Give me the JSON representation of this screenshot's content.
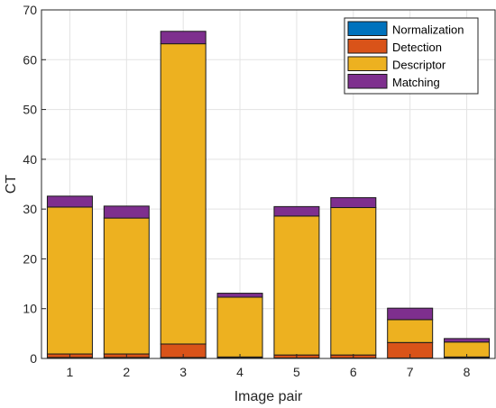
{
  "chart_data": {
    "type": "bar",
    "stacked": true,
    "xlabel": "Image pair",
    "ylabel": "CT",
    "categories": [
      "1",
      "2",
      "3",
      "4",
      "5",
      "6",
      "7",
      "8"
    ],
    "ylim": [
      0,
      70
    ],
    "yticks": [
      0,
      10,
      20,
      30,
      40,
      50,
      60,
      70
    ],
    "grid": true,
    "legend_position": "top-right",
    "series": [
      {
        "name": "Normalization",
        "color": "#0072BD",
        "values": [
          0.2,
          0.2,
          0.2,
          0.1,
          0.1,
          0.1,
          0.1,
          0.1
        ]
      },
      {
        "name": "Detection",
        "color": "#D95319",
        "values": [
          0.7,
          0.7,
          2.7,
          0.2,
          0.6,
          0.6,
          3.1,
          0.2
        ]
      },
      {
        "name": "Descriptor",
        "color": "#EDB120",
        "values": [
          29.5,
          27.3,
          60.3,
          12.0,
          27.9,
          29.6,
          4.6,
          3.0
        ]
      },
      {
        "name": "Matching",
        "color": "#7E2F8E",
        "values": [
          2.2,
          2.4,
          2.5,
          0.8,
          1.9,
          2.0,
          2.3,
          0.7
        ]
      }
    ]
  }
}
